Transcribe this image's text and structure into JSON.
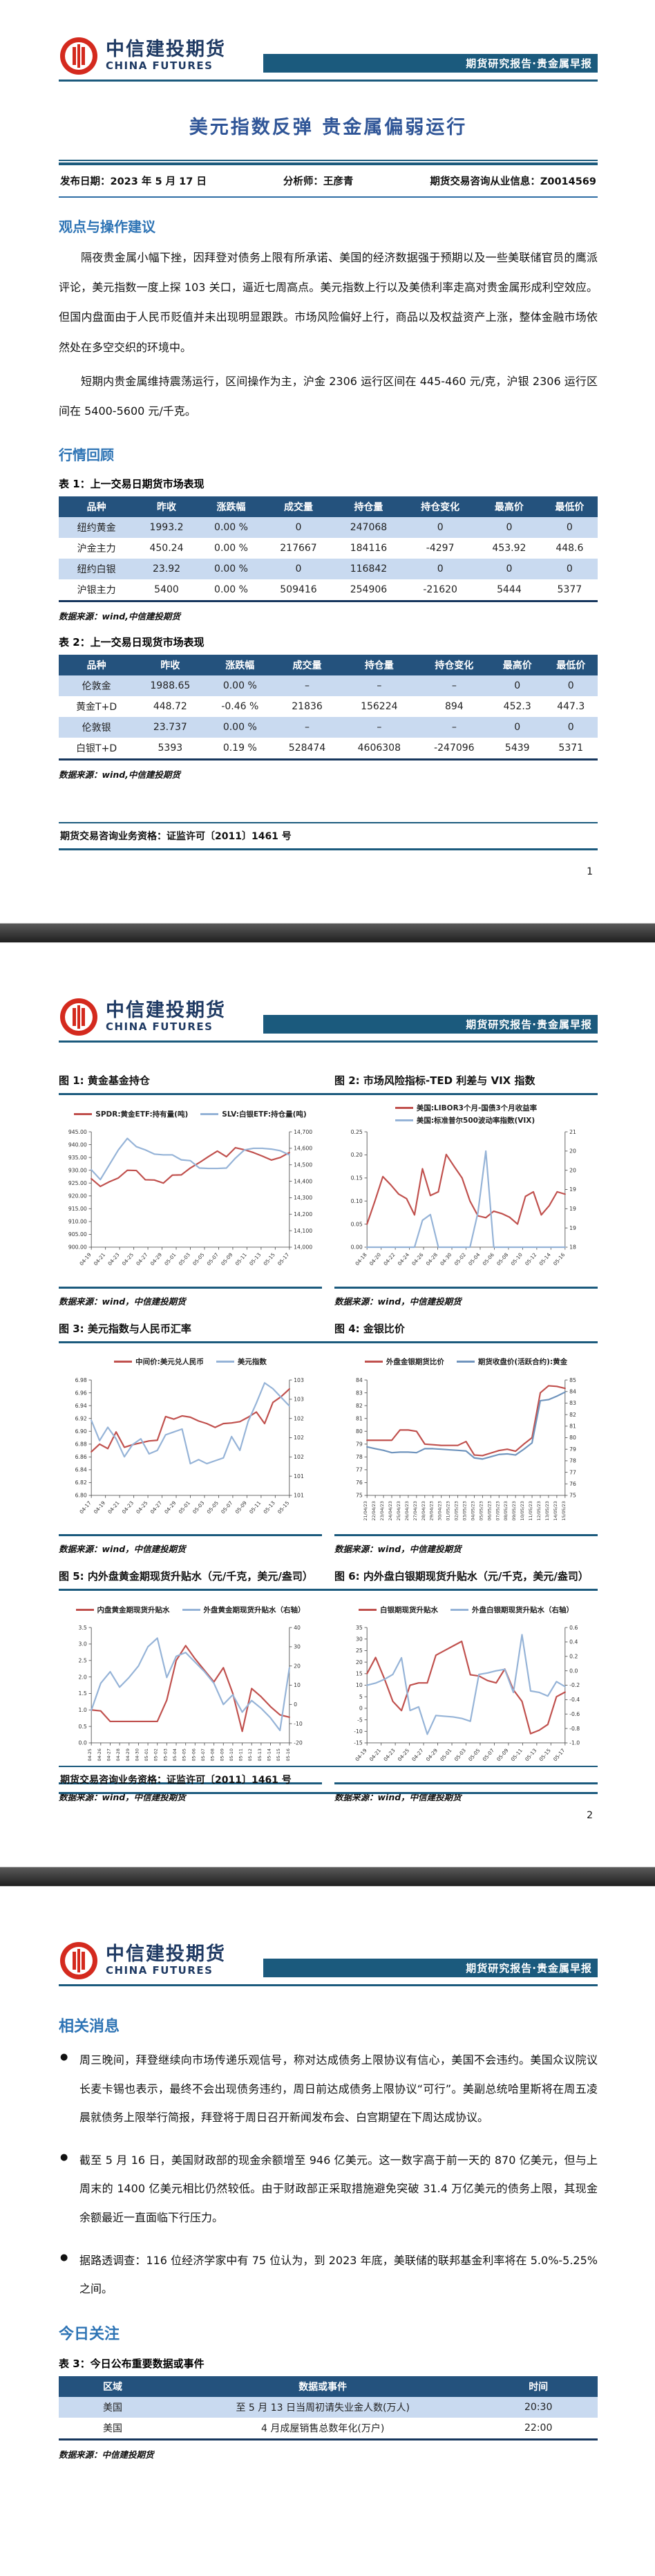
{
  "report": {
    "brand": {
      "name_cn": "中信建投期货",
      "name_en": "CHINA FUTURES",
      "banner": "期货研究报告·贵金属早报"
    },
    "footer_license": "期货交易咨询业务资格：证监许可〔2011〕1461 号",
    "page1": {
      "title": "美元指数反弹 贵金属偏弱运行",
      "meta": {
        "publish_date": "发布日期：2023 年 5 月 17 日",
        "analyst": "分析师：王彦青",
        "license": "期货交易咨询从业信息：Z0014569"
      },
      "viewpoint_heading": "观点与操作建议",
      "paragraph1": "隔夜贵金属小幅下挫，因拜登对债务上限有所承诺、美国的经济数据强于预期以及一些美联储官员的鹰派评论，美元指数一度上探 103 关口，逼近七周高点。美元指数上行以及美债利率走高对贵金属形成利空效应。但国内盘面由于人民币贬值并未出现明显跟跌。市场风险偏好上行，商品以及权益资产上涨，整体金融市场依然处在多空交织的环境中。",
      "paragraph2": "短期内贵金属维持震荡运行，区间操作为主，沪金 2306 运行区间在 445-460 元/克，沪银 2306 运行区间在 5400-5600 元/千克。",
      "review_heading": "行情回顾",
      "table1": {
        "caption": "表 1：上一交易日期货市场表现",
        "headers": [
          "品种",
          "昨收",
          "涨跌幅",
          "成交量",
          "持仓量",
          "持仓变化",
          "最高价",
          "最低价"
        ],
        "rows": [
          [
            "纽约黄金",
            "1993.2",
            "0.00 %",
            "0",
            "247068",
            "0",
            "0",
            "0"
          ],
          [
            "沪金主力",
            "450.24",
            "0.00 %",
            "217667",
            "184116",
            "-4297",
            "453.92",
            "448.6"
          ],
          [
            "纽约白银",
            "23.92",
            "0.00 %",
            "0",
            "116842",
            "0",
            "0",
            "0"
          ],
          [
            "沪银主力",
            "5400",
            "0.00 %",
            "509416",
            "254906",
            "-21620",
            "5444",
            "5377"
          ]
        ],
        "source": "数据来源：wind,中信建投期货"
      },
      "table2": {
        "caption": "表 2：上一交易日现货市场表现",
        "headers": [
          "品种",
          "昨收",
          "涨跌幅",
          "成交量",
          "持仓量",
          "持仓变化",
          "最高价",
          "最低价"
        ],
        "rows": [
          [
            "伦敦金",
            "1988.65",
            "0.00 %",
            "–",
            "–",
            "–",
            "0",
            "0"
          ],
          [
            "黄金T+D",
            "448.72",
            "-0.46 %",
            "21836",
            "156224",
            "894",
            "452.3",
            "447.3"
          ],
          [
            "伦敦银",
            "23.737",
            "0.00 %",
            "–",
            "–",
            "–",
            "0",
            "0"
          ],
          [
            "白银T+D",
            "5393",
            "0.19 %",
            "528474",
            "4606308",
            "-247096",
            "5439",
            "5371"
          ]
        ],
        "source": "数据来源：wind,中信建投期货"
      },
      "page_number": "1"
    },
    "page2": {
      "page_number": "2"
    },
    "page3": {
      "news_heading": "相关消息",
      "bullets": [
        "周三晚间，拜登继续向市场传递乐观信号，称对达成债务上限协议有信心，美国不会违约。美国众议院议长麦卡锡也表示，最终不会出现债务违约，周日前达成债务上限协议“可行”。美副总统哈里斯将在周五凌晨就债务上限举行简报，拜登将于周日召开新闻发布会、白宫期望在下周达成协议。",
        "截至 5 月 16 日，美国财政部的现金余额增至 946 亿美元。这一数字高于前一天的 870 亿美元，但与上周末的 1400 亿美元相比仍然较低。由于财政部正采取措施避免突破 31.4 万亿美元的债务上限，其现金余额最近一直面临下行压力。",
        "据路透调查：116 位经济学家中有 75 位认为，到 2023 年底，美联储的联邦基金利率将在 5.0%-5.25%之间。"
      ],
      "focus_heading": "今日关注",
      "table3": {
        "caption": "表 3：今日公布重要数据或事件",
        "headers": [
          "区域",
          "数据或事件",
          "时间"
        ],
        "rows": [
          [
            "美国",
            "至 5 月 13 日当周初请失业金人数(万人)",
            "20:30"
          ],
          [
            "美国",
            "4 月成屋销售总数年化(万户)",
            "22:00"
          ]
        ],
        "source": "数据来源：中信建投期货"
      }
    }
  },
  "chart_data": [
    {
      "type": "line",
      "caption": "图 1: 黄金基金持仓",
      "source": "数据来源：wind，中信建投期货",
      "x_ticks": [
        "04-19",
        "04-21",
        "04-23",
        "04-25",
        "04-27",
        "04-29",
        "05-01",
        "05-03",
        "05-05",
        "05-07",
        "05-09",
        "05-11",
        "05-13",
        "05-15",
        "05-17"
      ],
      "left_ticks": [
        "945.00",
        "940.00",
        "935.00",
        "930.00",
        "925.00",
        "920.00",
        "915.00",
        "910.00",
        "905.00",
        "900.00"
      ],
      "right_ticks": [
        "14,700",
        "14,600",
        "14,500",
        "14,400",
        "14,300",
        "14,200",
        "14,100",
        "14,000"
      ],
      "left_range": [
        900,
        945
      ],
      "right_range": [
        14000,
        14700
      ],
      "rot90": false,
      "legend_stacked": false,
      "series": [
        {
          "name": "SPDR:黄金ETF:持有量(吨)",
          "color": "#c0504d",
          "axis": "left",
          "values": [
            926.7,
            923.7,
            925.5,
            927.0,
            930.0,
            929.9,
            926.3,
            926.2,
            925.0,
            928.1,
            928.2,
            930.9,
            933.0,
            935.3,
            937.5,
            935.3,
            938.8,
            938.0,
            936.9,
            935.5,
            934.0,
            935.0,
            936.9
          ]
        },
        {
          "name": "SLV:白银ETF:持仓量(吨)",
          "color": "#95b3d7",
          "axis": "right",
          "values": [
            14470,
            14410,
            14500,
            14590,
            14660,
            14610,
            14590,
            14565,
            14560,
            14560,
            14530,
            14525,
            14480,
            14478,
            14478,
            14480,
            14540,
            14590,
            14600,
            14600,
            14595,
            14585,
            14560
          ]
        }
      ]
    },
    {
      "type": "line",
      "caption": "图 2: 市场风险指标-TED 利差与 VIX 指数",
      "source": "数据来源：wind，中信建投期货",
      "x_ticks": [
        "04-18",
        "04-20",
        "04-22",
        "04-24",
        "04-26",
        "04-28",
        "04-30",
        "05-02",
        "05-04",
        "05-06",
        "05-08",
        "05-10",
        "05-12",
        "05-14",
        "05-16"
      ],
      "left_ticks": [
        "0.25",
        "0.20",
        "0.15",
        "0.10",
        "0.05",
        "0.00"
      ],
      "right_ticks": [
        "21",
        "20",
        "20",
        "19",
        "19",
        "19",
        "18"
      ],
      "left_range": [
        0,
        0.25
      ],
      "right_range": [
        18,
        21
      ],
      "rot90": false,
      "legend_stacked": true,
      "series": [
        {
          "name": "美国:LIBOR3个月-国债3个月收益率",
          "color": "#c0504d",
          "axis": "left",
          "values": [
            0.05,
            0.1,
            0.153,
            0.135,
            0.115,
            0.105,
            0.07,
            0.17,
            0.112,
            0.12,
            0.201,
            0.175,
            0.15,
            0.1,
            0.068,
            0.064,
            0.078,
            0.073,
            0.065,
            0.05,
            0.11,
            0.12,
            0.07,
            0.09,
            0.12,
            0.115
          ]
        },
        {
          "name": "美国:标准普尔500波动率指数(VIX)",
          "color": "#95b3d7",
          "axis": "right",
          "values": [
            18,
            18,
            18,
            18,
            18,
            18,
            18,
            18.7,
            18.85,
            18,
            18,
            18,
            18,
            18,
            18.9,
            20.5,
            18,
            18,
            18,
            18,
            18,
            18,
            18,
            18,
            18,
            18
          ]
        }
      ]
    },
    {
      "type": "line",
      "caption": "图 3: 美元指数与人民币汇率",
      "source": "数据来源：wind，中信建投期货",
      "x_ticks": [
        "04-17",
        "04-19",
        "04-21",
        "04-23",
        "04-25",
        "04-27",
        "04-29",
        "05-01",
        "05-03",
        "05-05",
        "05-07",
        "05-09",
        "05-11",
        "05-13",
        "05-15"
      ],
      "left_ticks": [
        "6.98",
        "6.96",
        "6.94",
        "6.92",
        "6.90",
        "6.88",
        "6.86",
        "6.84",
        "6.82",
        "6.80"
      ],
      "right_ticks": [
        "103",
        "103",
        "102",
        "102",
        "102",
        "101",
        "101"
      ],
      "left_range": [
        6.8,
        6.98
      ],
      "right_range": [
        101,
        103
      ],
      "rot90": false,
      "legend_stacked": false,
      "series": [
        {
          "name": "中间价:美元兑人民币",
          "color": "#c0504d",
          "axis": "left",
          "values": [
            6.868,
            6.88,
            6.873,
            6.899,
            6.875,
            6.879,
            6.882,
            6.885,
            6.886,
            6.923,
            6.919,
            6.924,
            6.922,
            6.916,
            6.912,
            6.906,
            6.912,
            6.913,
            6.915,
            6.922,
            6.93,
            6.912,
            6.945,
            6.954,
            6.966
          ]
        },
        {
          "name": "美元指数",
          "color": "#95b3d7",
          "axis": "right",
          "values": [
            102.3,
            101.95,
            102.18,
            101.98,
            101.67,
            101.88,
            101.98,
            101.72,
            101.78,
            102.05,
            102.1,
            102.15,
            101.55,
            101.62,
            101.55,
            101.6,
            101.65,
            102.02,
            101.78,
            102.28,
            102.6,
            102.95,
            102.85,
            102.7,
            102.55
          ]
        }
      ]
    },
    {
      "type": "line",
      "caption": "图 4: 金银比价",
      "source": "数据来源：wind，中信建投期货",
      "x_ticks": [
        "21/04/23",
        "22/04/23",
        "23/04/23",
        "24/04/23",
        "25/04/23",
        "26/04/23",
        "27/04/23",
        "28/04/23",
        "29/04/23",
        "30/04/23",
        "01/05/23",
        "02/05/23",
        "03/05/23",
        "04/05/23",
        "05/05/23",
        "06/05/23",
        "07/05/23",
        "08/05/23",
        "09/05/23",
        "10/05/23",
        "11/05/23",
        "12/05/23",
        "13/05/23",
        "14/05/23",
        "15/05/23"
      ],
      "left_ticks": [
        "84",
        "83",
        "82",
        "81",
        "80",
        "79",
        "78",
        "77",
        "76",
        "75"
      ],
      "right_ticks": [
        "85",
        "84",
        "83",
        "82",
        "81",
        "80",
        "79",
        "78",
        "77",
        "76",
        "75"
      ],
      "left_range": [
        75,
        84
      ],
      "right_range": [
        75,
        85
      ],
      "rot90": true,
      "legend_stacked": false,
      "series": [
        {
          "name": "外盘金银期货比价",
          "color": "#c0504d",
          "axis": "left",
          "values": [
            79.3,
            79.3,
            79.3,
            79.3,
            80.1,
            80.1,
            80.0,
            79.0,
            78.95,
            78.9,
            78.9,
            78.9,
            79.2,
            78.15,
            78.1,
            78.3,
            78.5,
            78.6,
            78.45,
            79.0,
            79.5,
            83.0,
            83.55,
            83.5,
            83.35
          ]
        },
        {
          "name": "期货收盘价(活跃合约):黄金",
          "color": "#6f94bd",
          "axis": "right",
          "values": [
            79.2,
            79.05,
            78.9,
            78.7,
            78.75,
            78.75,
            78.7,
            79.05,
            79.05,
            79.0,
            78.95,
            78.9,
            78.85,
            78.25,
            78.15,
            78.35,
            78.55,
            78.6,
            78.5,
            79.0,
            79.55,
            83.2,
            83.3,
            83.6,
            83.95
          ]
        }
      ]
    },
    {
      "type": "line",
      "caption": "图 5: 内外盘黄金期现货升贴水（元/千克，美元/盎司）",
      "source": "数据来源：wind，中信建投期货",
      "x_ticks": [
        "04-25",
        "04-26",
        "04-27",
        "04-28",
        "04-29",
        "04-30",
        "05-01",
        "05-02",
        "05-03",
        "05-04",
        "05-05",
        "05-06",
        "05-07",
        "05-08",
        "05-09",
        "05-10",
        "05-11",
        "05-12",
        "05-13",
        "05-14",
        "05-15",
        "05-16"
      ],
      "left_ticks": [
        "3.5",
        "3.0",
        "2.5",
        "2.0",
        "1.5",
        "1.0",
        "0.5",
        "0.0"
      ],
      "right_ticks": [
        "40",
        "30",
        "20",
        "10",
        "0",
        "-10",
        "-20"
      ],
      "left_range": [
        0,
        3.5
      ],
      "right_range": [
        -20,
        40
      ],
      "rot90": true,
      "legend_stacked": false,
      "series": [
        {
          "name": "内盘黄金期现货升贴水",
          "color": "#c0504d",
          "axis": "left",
          "values": [
            1.0,
            0.97,
            0.65,
            0.65,
            0.65,
            0.65,
            0.65,
            0.65,
            1.3,
            2.5,
            2.95,
            2.55,
            2.2,
            1.85,
            2.28,
            1.5,
            0.35,
            1.65,
            1.4,
            1.1,
            0.85,
            0.78
          ]
        },
        {
          "name": "外盘黄金期现货升贴水（右轴）",
          "color": "#95b3d7",
          "axis": "right",
          "values": [
            -3,
            11,
            17,
            9,
            14,
            20,
            30,
            34.5,
            14,
            25,
            27,
            22,
            17,
            11,
            0,
            5,
            -4,
            2,
            -2,
            -7,
            -13.5,
            19
          ]
        }
      ]
    },
    {
      "type": "line",
      "caption": "图 6: 内外盘白银期现货升贴水（元/千克，美元/盎司）",
      "source": "数据来源：wind，中信建投期货",
      "x_ticks": [
        "04-19",
        "04-21",
        "04-23",
        "04-25",
        "04-27",
        "04-29",
        "05-01",
        "05-03",
        "05-05",
        "05-07",
        "05-09",
        "05-11",
        "05-13",
        "05-15",
        "05-17"
      ],
      "left_ticks": [
        "35",
        "30",
        "25",
        "20",
        "15",
        "10",
        "5",
        "0",
        "-5",
        "-10",
        "-15"
      ],
      "right_ticks": [
        "0.6",
        "0.4",
        "0.2",
        "0.0",
        "-0.2",
        "-0.4",
        "-0.6",
        "-0.8",
        "-1.0"
      ],
      "left_range": [
        -15,
        35
      ],
      "right_range": [
        -1.0,
        0.6
      ],
      "rot90": false,
      "legend_stacked": false,
      "series": [
        {
          "name": "白银期现货升贴水",
          "color": "#c0504d",
          "axis": "left",
          "values": [
            15,
            22,
            13,
            3,
            -1,
            10,
            11,
            11,
            23,
            25,
            27,
            29,
            14.5,
            14,
            12,
            11,
            17,
            8,
            3,
            -11,
            -9.5,
            -7,
            5,
            7
          ]
        },
        {
          "name": "外盘白银期现货升贴水（右轴）",
          "color": "#95b3d7",
          "axis": "right",
          "values": [
            -0.2,
            -0.17,
            -0.12,
            -0.05,
            0.18,
            -0.55,
            -0.5,
            -0.88,
            -0.62,
            -0.63,
            -0.64,
            -0.66,
            -0.7,
            -0.05,
            -0.03,
            0.0,
            0.02,
            -0.3,
            0.5,
            -0.28,
            -0.3,
            -0.35,
            -0.15,
            -0.22
          ]
        }
      ]
    }
  ]
}
